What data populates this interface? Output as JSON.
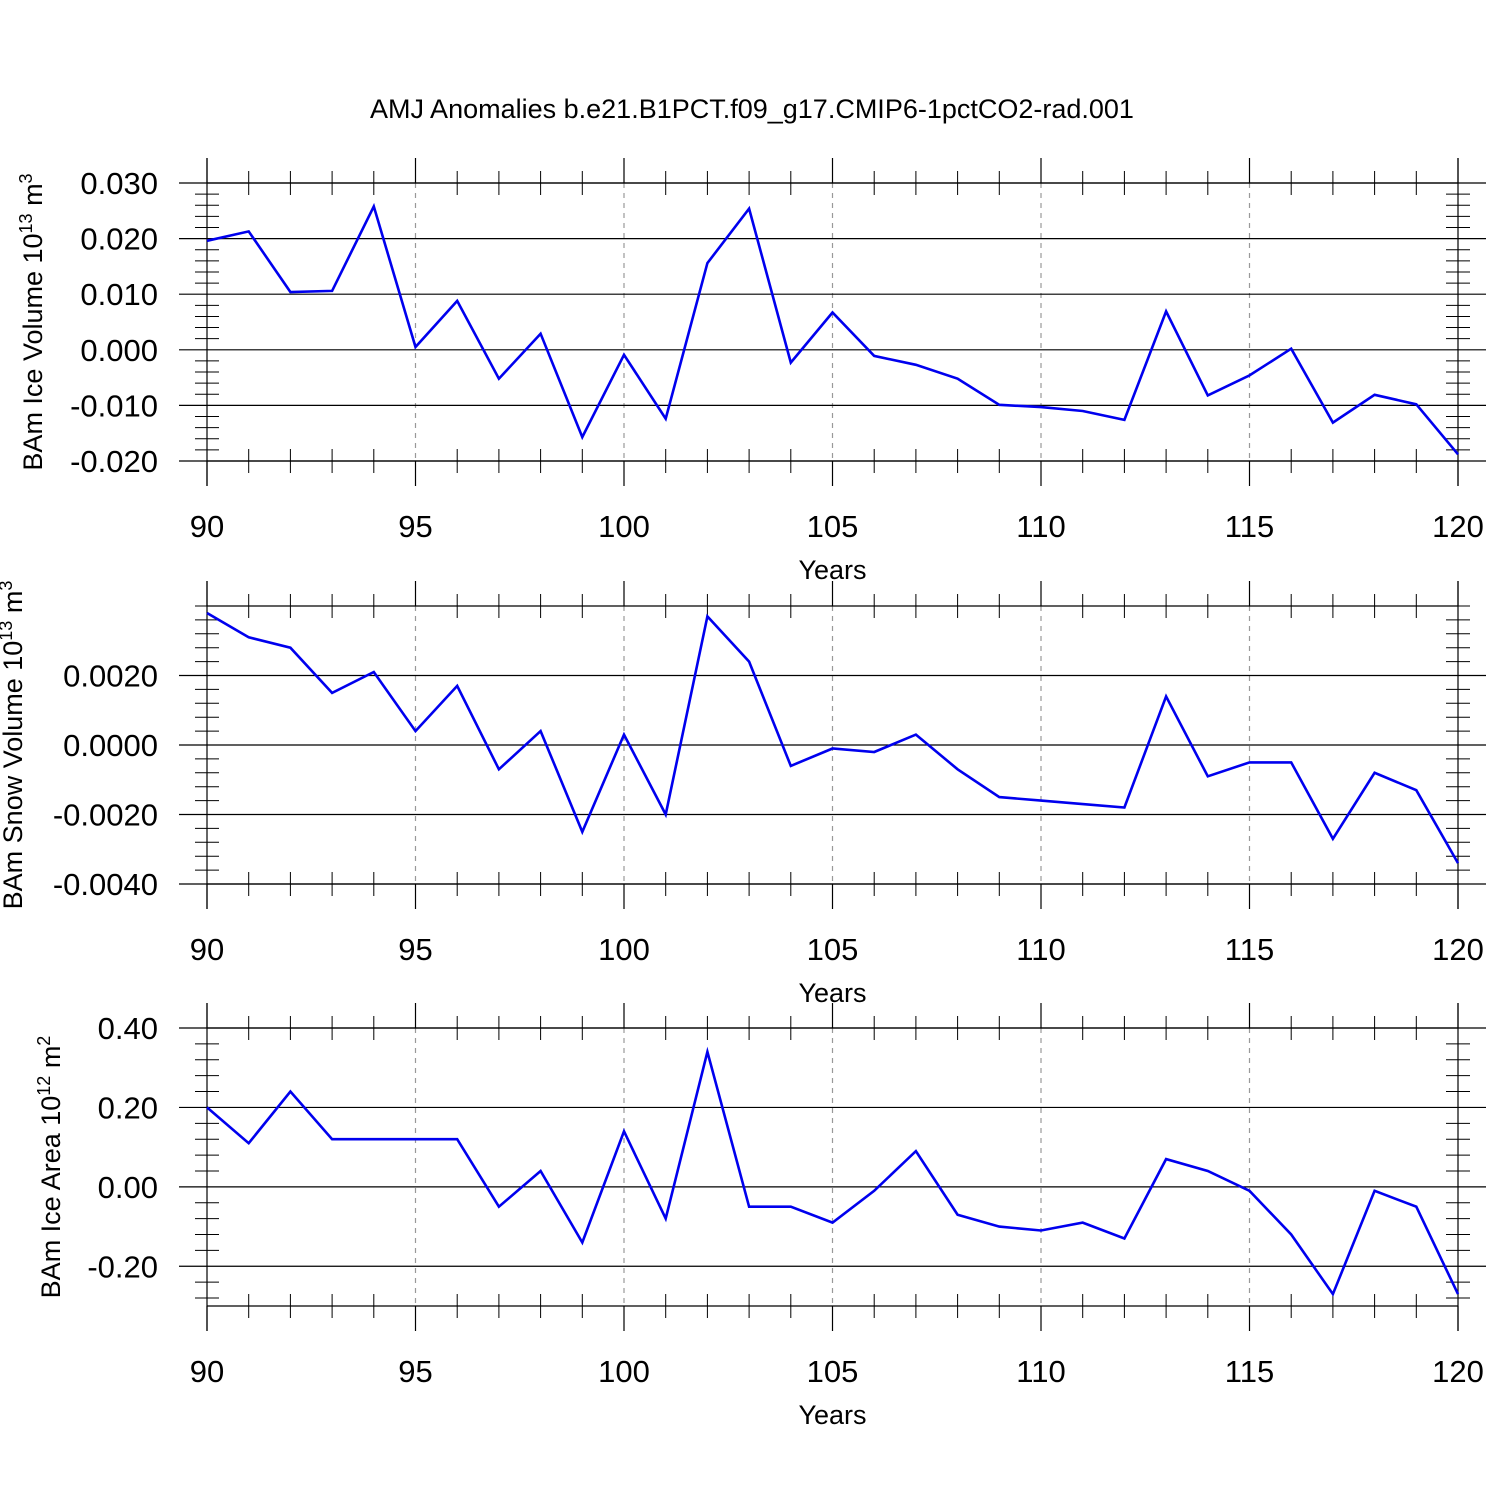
{
  "figure_title": "AMJ Anomalies b.e21.B1PCT.f09_g17.CMIP6-1pctCO2-rad.001",
  "line_color": "#0000ee",
  "chart_data": [
    {
      "type": "line",
      "ylabel_main": "BAm Ice Volume 10",
      "ylabel_exp": "13",
      "ylabel_unit": " m",
      "ylabel_unit_exp": "3",
      "xlabel": "Years",
      "xlim": [
        90,
        120
      ],
      "ylim": [
        -0.02,
        0.03
      ],
      "x_ticks": [
        90,
        95,
        100,
        105,
        110,
        115,
        120
      ],
      "x_tick_labels": [
        "90",
        "95",
        "100",
        "105",
        "110",
        "115",
        "120"
      ],
      "y_ticks": [
        -0.02,
        -0.01,
        0.0,
        0.01,
        0.02,
        0.03
      ],
      "y_tick_labels": [
        "-0.020",
        "-0.010",
        "0.000",
        "0.010",
        "0.020",
        "0.030"
      ],
      "y_minor_step": 0.002,
      "grid": "dashed vertical at major x ticks",
      "series": [
        {
          "x": [
            90,
            91,
            92,
            93,
            94,
            95,
            96,
            97,
            98,
            99,
            100,
            101,
            102,
            103,
            104,
            105,
            106,
            107,
            108,
            109,
            110,
            111,
            112,
            113,
            114,
            115,
            116,
            117,
            118,
            119,
            120
          ],
          "values": [
            0.0196,
            0.0213,
            0.0104,
            0.0106,
            0.0258,
            0.0005,
            0.0088,
            -0.0052,
            0.0029,
            -0.0157,
            -0.0009,
            -0.0124,
            0.0156,
            0.0254,
            -0.0023,
            0.0067,
            -0.0011,
            -0.0027,
            -0.0052,
            -0.0099,
            -0.0103,
            -0.011,
            -0.0126,
            0.0069,
            -0.0082,
            -0.0046,
            0.0002,
            -0.0131,
            -0.0081,
            -0.0098,
            -0.0188
          ]
        }
      ]
    },
    {
      "type": "line",
      "ylabel_main": "BAm Snow Volume 10",
      "ylabel_exp": "13",
      "ylabel_unit": " m",
      "ylabel_unit_exp": "3",
      "xlabel": "Years",
      "xlim": [
        90,
        120
      ],
      "ylim": [
        -0.004,
        0.004
      ],
      "x_ticks": [
        90,
        95,
        100,
        105,
        110,
        115,
        120
      ],
      "x_tick_labels": [
        "90",
        "95",
        "100",
        "105",
        "110",
        "115",
        "120"
      ],
      "y_ticks": [
        -0.004,
        -0.002,
        0.0,
        0.002
      ],
      "y_tick_labels": [
        "-0.0040",
        "-0.0020",
        "0.0000",
        "0.0020"
      ],
      "y_minor_step": 0.0004,
      "grid": "dashed vertical at major x ticks",
      "series": [
        {
          "x": [
            90,
            91,
            92,
            93,
            94,
            95,
            96,
            97,
            98,
            99,
            100,
            101,
            102,
            103,
            104,
            105,
            106,
            107,
            108,
            109,
            110,
            111,
            112,
            113,
            114,
            115,
            116,
            117,
            118,
            119,
            120
          ],
          "values": [
            0.0038,
            0.0031,
            0.0028,
            0.0015,
            0.0021,
            0.0004,
            0.0017,
            -0.0007,
            0.0004,
            -0.0025,
            0.0003,
            -0.002,
            0.0037,
            0.0024,
            -0.0006,
            -0.0001,
            -0.0002,
            0.0003,
            -0.0007,
            -0.0015,
            -0.0016,
            -0.0017,
            -0.0018,
            0.0014,
            -0.0009,
            -0.0005,
            -0.0005,
            -0.0027,
            -0.0008,
            -0.0013,
            -0.0034
          ]
        }
      ]
    },
    {
      "type": "line",
      "ylabel_main": "BAm Ice Area 10",
      "ylabel_exp": "12",
      "ylabel_unit": " m",
      "ylabel_unit_exp": "2",
      "xlabel": "Years",
      "xlim": [
        90,
        120
      ],
      "ylim": [
        -0.3,
        0.4
      ],
      "x_ticks": [
        90,
        95,
        100,
        105,
        110,
        115,
        120
      ],
      "x_tick_labels": [
        "90",
        "95",
        "100",
        "105",
        "110",
        "115",
        "120"
      ],
      "y_ticks": [
        -0.2,
        0.0,
        0.2,
        0.4
      ],
      "y_tick_labels": [
        "-0.20",
        "0.00",
        "0.20",
        "0.40"
      ],
      "y_minor_step": 0.04,
      "grid": "dashed vertical at major x ticks",
      "series": [
        {
          "x": [
            90,
            91,
            92,
            93,
            94,
            95,
            96,
            97,
            98,
            99,
            100,
            101,
            102,
            103,
            104,
            105,
            106,
            107,
            108,
            109,
            110,
            111,
            112,
            113,
            114,
            115,
            116,
            117,
            118,
            119,
            120
          ],
          "values": [
            0.2,
            0.11,
            0.24,
            0.12,
            0.12,
            0.12,
            0.12,
            -0.05,
            0.04,
            -0.14,
            0.14,
            -0.08,
            0.34,
            -0.05,
            -0.05,
            -0.09,
            -0.01,
            0.09,
            -0.07,
            -0.1,
            -0.11,
            -0.09,
            -0.13,
            0.07,
            0.04,
            -0.01,
            -0.12,
            -0.27,
            -0.01,
            -0.05,
            -0.27
          ]
        }
      ]
    }
  ]
}
